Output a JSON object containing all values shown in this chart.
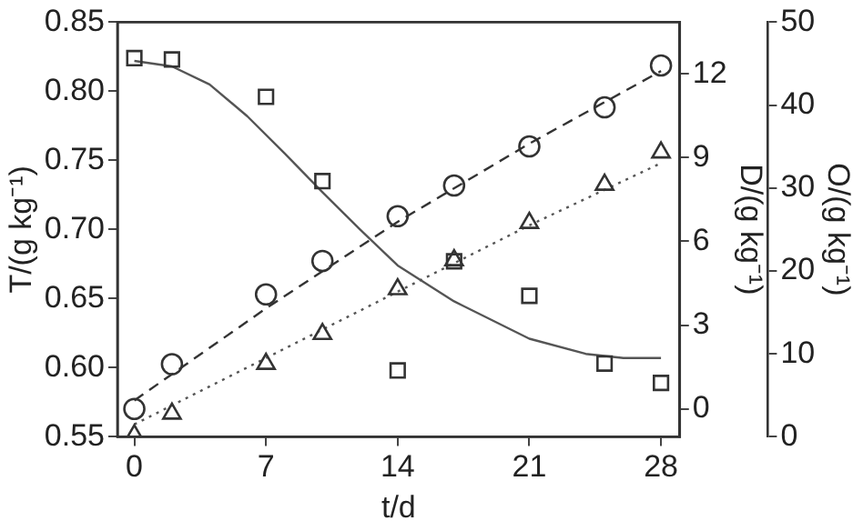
{
  "chart_data": {
    "type": "scatter",
    "xlabel": "t/d",
    "ylabel": "T/(g kg⁻¹)",
    "y2label": "D/(g kg⁻¹)",
    "y3label": "O/(g kg⁻¹)",
    "xlim": [
      -0.9,
      29
    ],
    "xticks": [
      0,
      7,
      14,
      21,
      28
    ],
    "ylim": [
      0.55,
      0.85
    ],
    "yticks": [
      0.55,
      {
        "value": 0.6,
        "label": "0.60"
      },
      0.65,
      {
        "value": 0.7,
        "label": "0.70"
      },
      0.75,
      {
        "value": 0.8,
        "label": "0.80"
      },
      0.85
    ],
    "y2lim": [
      -1,
      13.85
    ],
    "y2ticks": [
      0,
      3,
      6,
      9,
      12
    ],
    "y3lim": [
      0,
      50
    ],
    "y3ticks": [
      0,
      10,
      20,
      30,
      40,
      50
    ],
    "grid": false,
    "legend": false,
    "series": [
      {
        "marker": "square",
        "color": "#333333",
        "x": [
          0,
          2,
          7,
          10,
          14,
          17,
          21,
          25,
          28
        ],
        "values": [
          0.824,
          0.823,
          0.796,
          0.735,
          0.598,
          0.677,
          0.652,
          0.603,
          0.589
        ]
      },
      {
        "marker": "circle",
        "axis": "y2",
        "color": "#333333",
        "x": [
          0,
          2,
          7,
          10,
          14,
          17,
          21,
          25,
          28
        ],
        "values": [
          0,
          1.6,
          4.1,
          5.3,
          6.9,
          8.0,
          9.4,
          10.8,
          12.3
        ]
      },
      {
        "marker": "triangle",
        "axis": "y3",
        "color": "#333333",
        "x": [
          0,
          2,
          7,
          10,
          14,
          17,
          21,
          25,
          28
        ],
        "values": [
          0.2,
          2.8,
          8.8,
          12.4,
          17.8,
          21.3,
          25.8,
          30.4,
          34.3
        ]
      },
      {
        "type": "line",
        "marker": "none",
        "line_style": "solid",
        "color": "#555555",
        "x": [
          0,
          2,
          4,
          6,
          8,
          10,
          12,
          14,
          17,
          21,
          24,
          26,
          28
        ],
        "values": [
          0.822,
          0.818,
          0.805,
          0.782,
          0.755,
          0.727,
          0.7,
          0.674,
          0.648,
          0.621,
          0.61,
          0.607,
          0.607
        ]
      },
      {
        "type": "line",
        "marker": "none",
        "line_style": "dashed",
        "axis": "y2",
        "color": "#333333",
        "x": [
          0,
          7,
          14,
          21,
          28
        ],
        "values": [
          0.3,
          3.6,
          6.7,
          9.5,
          12.1
        ]
      },
      {
        "type": "line",
        "marker": "none",
        "line_style": "dotted",
        "axis": "y3",
        "color": "#555555",
        "x": [
          0,
          7,
          14,
          21,
          28
        ],
        "values": [
          1.5,
          9.5,
          17.5,
          25.5,
          33
        ]
      }
    ]
  }
}
